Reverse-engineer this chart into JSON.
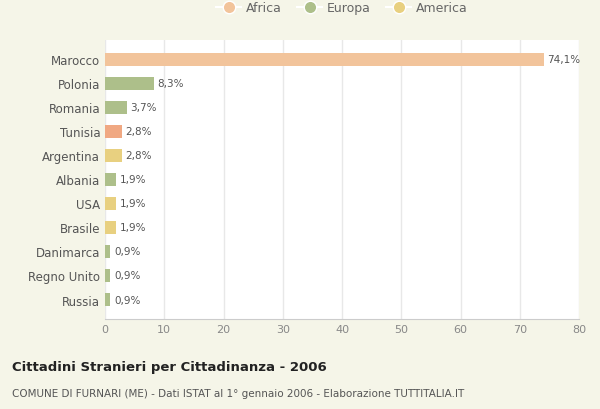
{
  "countries": [
    "Marocco",
    "Polonia",
    "Romania",
    "Tunisia",
    "Argentina",
    "Albania",
    "USA",
    "Brasile",
    "Danimarca",
    "Regno Unito",
    "Russia"
  ],
  "values": [
    74.1,
    8.3,
    3.7,
    2.8,
    2.8,
    1.9,
    1.9,
    1.9,
    0.9,
    0.9,
    0.9
  ],
  "labels": [
    "74,1%",
    "8,3%",
    "3,7%",
    "2,8%",
    "2,8%",
    "1,9%",
    "1,9%",
    "1,9%",
    "0,9%",
    "0,9%",
    "0,9%"
  ],
  "colors": [
    "#F2C49B",
    "#ADBF8A",
    "#ADBF8A",
    "#F0A882",
    "#E8D080",
    "#ADBF8A",
    "#E8D080",
    "#E8D080",
    "#ADBF8A",
    "#ADBF8A",
    "#ADBF8A"
  ],
  "legend": [
    {
      "label": "Africa",
      "color": "#F2C49B"
    },
    {
      "label": "Europa",
      "color": "#ADBF8A"
    },
    {
      "label": "America",
      "color": "#E8D080"
    }
  ],
  "xlim": [
    0,
    80
  ],
  "xticks": [
    0,
    10,
    20,
    30,
    40,
    50,
    60,
    70,
    80
  ],
  "title": "Cittadini Stranieri per Cittadinanza - 2006",
  "subtitle": "COMUNE DI FURNARI (ME) - Dati ISTAT al 1° gennaio 2006 - Elaborazione TUTTITALIA.IT",
  "background_color": "#f5f5e8",
  "plot_background": "#ffffff",
  "grid_color": "#e8e8e8",
  "bar_height": 0.55
}
